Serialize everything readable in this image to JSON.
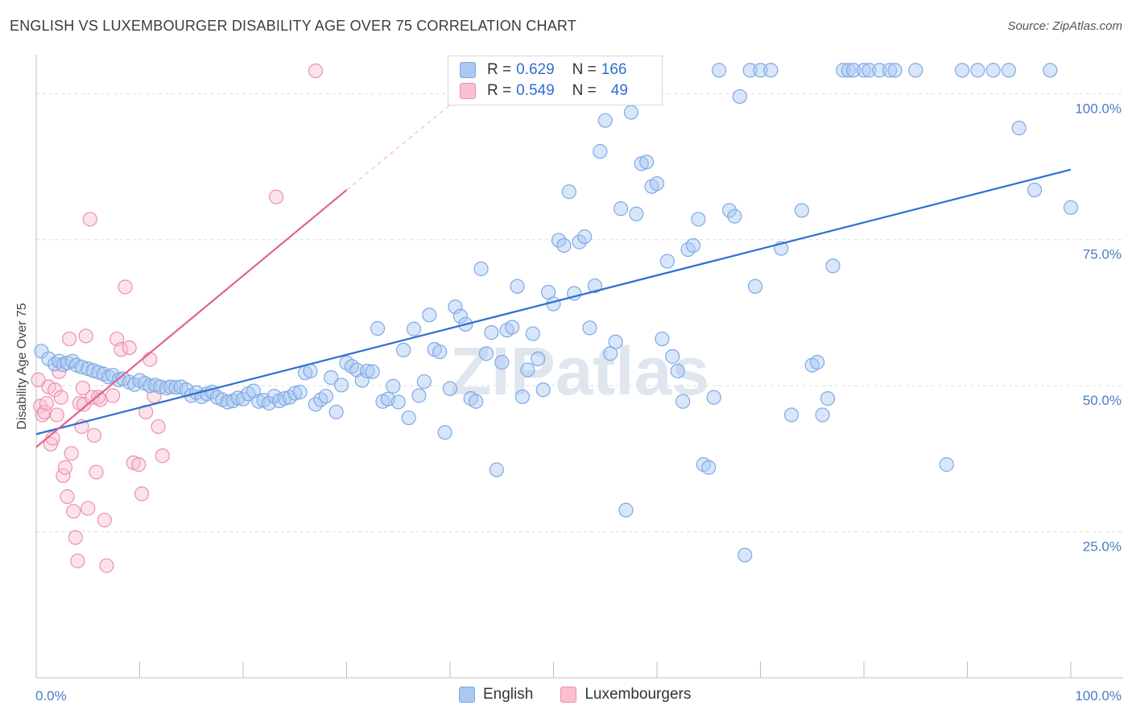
{
  "title": "ENGLISH VS LUXEMBOURGER DISABILITY AGE OVER 75 CORRELATION CHART",
  "source": "Source: ZipAtlas.com",
  "watermark": "ZIPatlas",
  "legend_stats": [
    {
      "r_label": "R =",
      "r_value": "0.629",
      "n_label": "N =",
      "n_value": "166",
      "color": "#a9c8f2",
      "border": "#7ea9e6"
    },
    {
      "r_label": "R =",
      "r_value": "0.549",
      "n_label": "N =",
      "n_value": "49",
      "color": "#f9c0d0",
      "border": "#ec90ab"
    }
  ],
  "bottom_legend": [
    {
      "name": "English",
      "color": "#a9c8f2",
      "border": "#7ea9e6"
    },
    {
      "name": "Luxembourgers",
      "color": "#f9c0d0",
      "border": "#ec90ab"
    }
  ],
  "chart_data": {
    "type": "scatter",
    "title": "ENGLISH VS LUXEMBOURGER DISABILITY AGE OVER 75 CORRELATION CHART",
    "xlabel": "",
    "ylabel": "Disability Age Over 75",
    "xlim": [
      0,
      100
    ],
    "ylim": [
      0,
      105
    ],
    "x_tick_labels": [
      {
        "value": 0,
        "label": "0.0%"
      },
      {
        "value": 100,
        "label": "100.0%"
      }
    ],
    "y_tick_labels": [
      {
        "value": 25,
        "label": "25.0%"
      },
      {
        "value": 50,
        "label": "50.0%"
      },
      {
        "value": 75,
        "label": "75.0%"
      },
      {
        "value": 100,
        "label": "100.0%"
      }
    ],
    "grid": "horizontal dashed",
    "legend_position": "top-center",
    "series": [
      {
        "name": "English",
        "color": "#a9c8f2",
        "stroke": "#7ea9e6",
        "trend": {
          "x": [
            0,
            100
          ],
          "y": [
            41.7,
            87.0
          ],
          "color": "#2f6fd1"
        },
        "points": [
          [
            0.5,
            55.9
          ],
          [
            1.2,
            54.6
          ],
          [
            1.8,
            53.7
          ],
          [
            2.2,
            54.2
          ],
          [
            2.6,
            53.6
          ],
          [
            3.0,
            53.9
          ],
          [
            3.5,
            54.2
          ],
          [
            3.9,
            53.5
          ],
          [
            4.4,
            53.2
          ],
          [
            5.0,
            52.9
          ],
          [
            5.5,
            52.6
          ],
          [
            6.0,
            52.3
          ],
          [
            6.5,
            52.0
          ],
          [
            7.0,
            51.5
          ],
          [
            7.4,
            51.8
          ],
          [
            8.0,
            51.0
          ],
          [
            8.4,
            51.2
          ],
          [
            9.0,
            50.6
          ],
          [
            9.5,
            50.2
          ],
          [
            10.0,
            50.9
          ],
          [
            10.5,
            50.4
          ],
          [
            11.0,
            50.0
          ],
          [
            11.5,
            50.1
          ],
          [
            12.0,
            49.8
          ],
          [
            12.6,
            49.6
          ],
          [
            13.0,
            49.8
          ],
          [
            13.5,
            49.7
          ],
          [
            14.0,
            49.8
          ],
          [
            14.5,
            49.3
          ],
          [
            15.0,
            48.3
          ],
          [
            15.5,
            48.8
          ],
          [
            16.0,
            48.1
          ],
          [
            16.5,
            48.6
          ],
          [
            17.0,
            48.9
          ],
          [
            17.5,
            48.0
          ],
          [
            18.0,
            47.6
          ],
          [
            18.5,
            47.2
          ],
          [
            19.0,
            47.4
          ],
          [
            19.5,
            47.9
          ],
          [
            20.0,
            47.7
          ],
          [
            20.5,
            48.6
          ],
          [
            21.0,
            49.1
          ],
          [
            21.5,
            47.3
          ],
          [
            22.0,
            47.5
          ],
          [
            22.5,
            47.0
          ],
          [
            23.0,
            48.2
          ],
          [
            23.5,
            47.4
          ],
          [
            24.0,
            47.8
          ],
          [
            24.5,
            48.0
          ],
          [
            25.0,
            48.7
          ],
          [
            25.5,
            48.9
          ],
          [
            26.0,
            52.2
          ],
          [
            26.5,
            52.5
          ],
          [
            27.0,
            46.8
          ],
          [
            27.5,
            47.6
          ],
          [
            28.0,
            48.2
          ],
          [
            28.5,
            51.4
          ],
          [
            29.0,
            45.5
          ],
          [
            29.5,
            50.1
          ],
          [
            30.0,
            53.9
          ],
          [
            30.5,
            53.3
          ],
          [
            31.0,
            52.7
          ],
          [
            31.5,
            50.9
          ],
          [
            32.0,
            52.5
          ],
          [
            32.5,
            52.4
          ],
          [
            33.0,
            59.8
          ],
          [
            33.5,
            47.3
          ],
          [
            34.0,
            47.7
          ],
          [
            34.5,
            49.9
          ],
          [
            35.0,
            47.2
          ],
          [
            35.5,
            56.1
          ],
          [
            36.0,
            44.5
          ],
          [
            36.5,
            59.7
          ],
          [
            37.0,
            48.3
          ],
          [
            37.5,
            50.7
          ],
          [
            38.0,
            62.1
          ],
          [
            38.5,
            56.2
          ],
          [
            39.0,
            55.8
          ],
          [
            39.5,
            42.0
          ],
          [
            40.0,
            49.5
          ],
          [
            40.5,
            63.5
          ],
          [
            41.0,
            61.9
          ],
          [
            41.5,
            60.5
          ],
          [
            42.0,
            47.8
          ],
          [
            42.5,
            47.3
          ],
          [
            43.0,
            70.0
          ],
          [
            43.5,
            55.5
          ],
          [
            44.0,
            59.1
          ],
          [
            44.5,
            35.6
          ],
          [
            45.0,
            54.0
          ],
          [
            45.5,
            59.5
          ],
          [
            46.0,
            60.0
          ],
          [
            46.5,
            67.0
          ],
          [
            47.0,
            48.1
          ],
          [
            47.5,
            52.7
          ],
          [
            48.0,
            58.9
          ],
          [
            48.5,
            54.6
          ],
          [
            49.0,
            49.3
          ],
          [
            49.5,
            66.0
          ],
          [
            50.0,
            64.0
          ],
          [
            50.5,
            74.9
          ],
          [
            51.0,
            74.0
          ],
          [
            51.5,
            83.2
          ],
          [
            52.0,
            65.8
          ],
          [
            52.5,
            74.6
          ],
          [
            53.0,
            75.5
          ],
          [
            53.5,
            59.9
          ],
          [
            54.0,
            67.1
          ],
          [
            54.5,
            90.1
          ],
          [
            55.0,
            95.4
          ],
          [
            55.5,
            55.5
          ],
          [
            56.0,
            57.5
          ],
          [
            56.5,
            80.3
          ],
          [
            57.0,
            28.7
          ],
          [
            57.5,
            96.8
          ],
          [
            58.0,
            79.4
          ],
          [
            58.5,
            88.0
          ],
          [
            59.0,
            88.3
          ],
          [
            59.5,
            84.1
          ],
          [
            60.0,
            84.6
          ],
          [
            60.5,
            58.0
          ],
          [
            61.0,
            71.3
          ],
          [
            61.5,
            55.0
          ],
          [
            62.0,
            52.5
          ],
          [
            62.5,
            47.3
          ],
          [
            63.0,
            73.3
          ],
          [
            63.5,
            74.0
          ],
          [
            64.0,
            78.5
          ],
          [
            64.5,
            36.5
          ],
          [
            65.0,
            36.0
          ],
          [
            65.5,
            48.0
          ],
          [
            66.0,
            104.0
          ],
          [
            67.0,
            80.0
          ],
          [
            67.5,
            79.0
          ],
          [
            68.0,
            99.5
          ],
          [
            68.5,
            21.0
          ],
          [
            69.0,
            104.0
          ],
          [
            69.5,
            67.0
          ],
          [
            70.0,
            104.0
          ],
          [
            71.0,
            104.0
          ],
          [
            72.0,
            73.5
          ],
          [
            73.0,
            45.0
          ],
          [
            74.0,
            80.0
          ],
          [
            75.0,
            53.5
          ],
          [
            75.5,
            54.0
          ],
          [
            76.0,
            45.0
          ],
          [
            76.5,
            47.8
          ],
          [
            77.0,
            70.5
          ],
          [
            78.0,
            104.0
          ],
          [
            78.5,
            104.0
          ],
          [
            79.0,
            104.0
          ],
          [
            80.0,
            104.0
          ],
          [
            80.5,
            104.0
          ],
          [
            81.5,
            104.0
          ],
          [
            82.5,
            104.0
          ],
          [
            83.0,
            104.0
          ],
          [
            85.0,
            104.0
          ],
          [
            88.0,
            36.5
          ],
          [
            89.5,
            104.0
          ],
          [
            91.0,
            104.0
          ],
          [
            92.5,
            104.0
          ],
          [
            94.0,
            104.0
          ],
          [
            95.0,
            94.1
          ],
          [
            96.5,
            83.5
          ],
          [
            98.0,
            104.0
          ],
          [
            100.0,
            80.5
          ]
        ]
      },
      {
        "name": "Luxembourgers",
        "color": "#f9c0d0",
        "stroke": "#ec90ab",
        "trend": {
          "x": [
            0,
            30
          ],
          "y": [
            39.5,
            83.5
          ],
          "color": "#e0648f",
          "extend_dashed_to": [
            42,
            101
          ]
        },
        "points": [
          [
            0.2,
            51.0
          ],
          [
            0.4,
            46.5
          ],
          [
            0.6,
            45.0
          ],
          [
            0.8,
            45.5
          ],
          [
            1.0,
            47.0
          ],
          [
            1.2,
            49.8
          ],
          [
            1.4,
            40.0
          ],
          [
            1.6,
            41.0
          ],
          [
            1.8,
            49.3
          ],
          [
            2.0,
            45.0
          ],
          [
            2.2,
            52.4
          ],
          [
            2.4,
            48.0
          ],
          [
            2.6,
            34.6
          ],
          [
            2.8,
            36.0
          ],
          [
            3.0,
            31.0
          ],
          [
            3.2,
            58.0
          ],
          [
            3.4,
            38.4
          ],
          [
            3.6,
            28.5
          ],
          [
            3.8,
            24.0
          ],
          [
            4.0,
            20.0
          ],
          [
            4.2,
            47.0
          ],
          [
            4.4,
            43.0
          ],
          [
            4.6,
            46.8
          ],
          [
            4.8,
            58.5
          ],
          [
            5.0,
            29.0
          ],
          [
            5.2,
            78.5
          ],
          [
            5.4,
            48.0
          ],
          [
            5.6,
            41.5
          ],
          [
            5.8,
            35.2
          ],
          [
            6.0,
            48.0
          ],
          [
            6.2,
            47.6
          ],
          [
            6.6,
            27.0
          ],
          [
            6.8,
            19.2
          ],
          [
            7.4,
            48.3
          ],
          [
            7.8,
            58.0
          ],
          [
            8.2,
            56.2
          ],
          [
            8.6,
            66.9
          ],
          [
            9.0,
            56.5
          ],
          [
            9.4,
            36.8
          ],
          [
            9.9,
            36.5
          ],
          [
            10.2,
            31.5
          ],
          [
            10.6,
            45.5
          ],
          [
            11.0,
            54.5
          ],
          [
            11.4,
            48.2
          ],
          [
            11.8,
            43.0
          ],
          [
            12.2,
            38.0
          ],
          [
            23.2,
            82.3
          ],
          [
            27.0,
            103.9
          ],
          [
            4.5,
            49.6
          ]
        ]
      }
    ]
  }
}
